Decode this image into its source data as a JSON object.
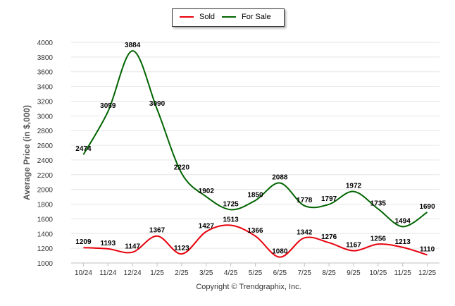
{
  "chart_data": {
    "type": "line",
    "categories": [
      "10/24",
      "11/24",
      "12/24",
      "1/25",
      "2/25",
      "3/25",
      "4/25",
      "5/25",
      "6/25",
      "7/25",
      "8/25",
      "9/25",
      "10/25",
      "11/25",
      "12/25"
    ],
    "series": [
      {
        "name": "Sold",
        "color": "#e8000b",
        "values": [
          1209,
          1193,
          1147,
          1367,
          1123,
          1427,
          1513,
          1366,
          1080,
          1342,
          1276,
          1167,
          1256,
          1213,
          1110
        ]
      },
      {
        "name": "For Sale",
        "color": "#006400",
        "values": [
          2474,
          3059,
          3884,
          3090,
          2220,
          1902,
          1725,
          1850,
          2088,
          1778,
          1797,
          1972,
          1735,
          1494,
          1690
        ]
      }
    ],
    "ylabel": "Average Price (in $,000)",
    "xlabel": "",
    "ylim": [
      1000,
      4000
    ],
    "yticks": [
      1000,
      1200,
      1400,
      1600,
      1800,
      2000,
      2200,
      2400,
      2600,
      2800,
      3000,
      3200,
      3400,
      3600,
      3800,
      4000
    ],
    "grid": true,
    "legend_position": "top-center"
  },
  "legend": {
    "sold_label": "Sold",
    "for_sale_label": "For Sale"
  },
  "footer": {
    "copyright": "Copyright © Trendgraphix, Inc."
  }
}
